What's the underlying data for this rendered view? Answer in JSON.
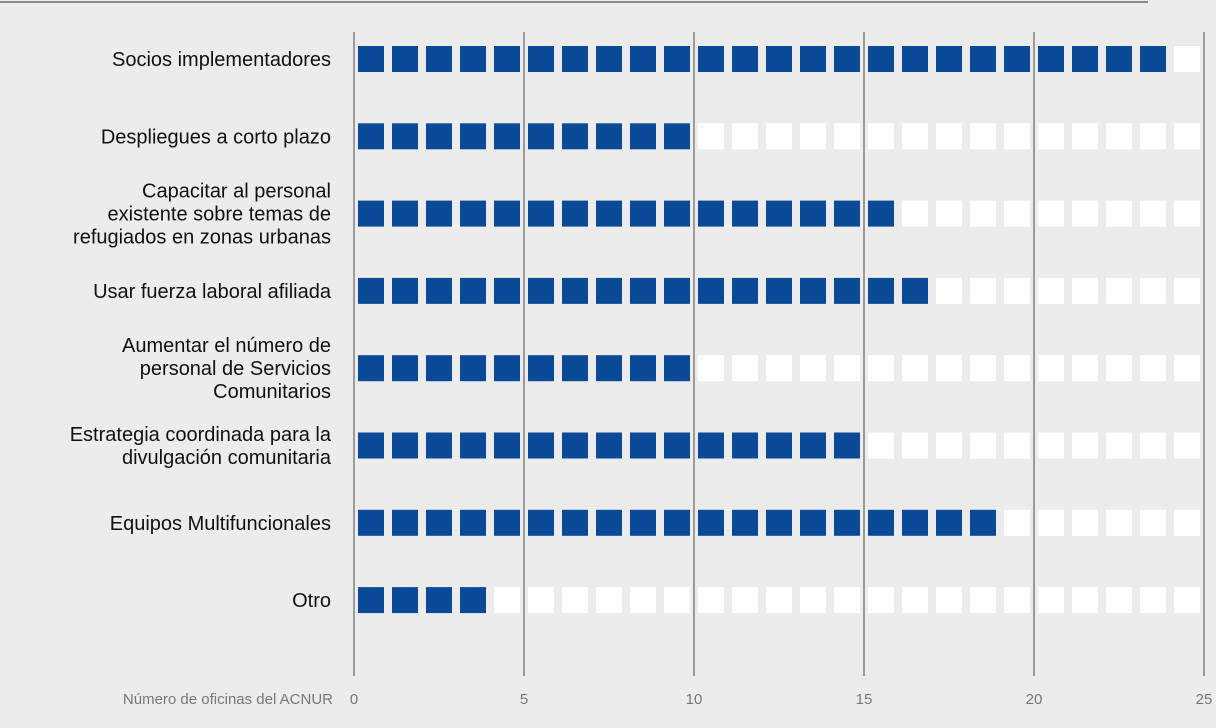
{
  "chart_data": {
    "type": "bar",
    "style": "pictograph-squares",
    "xlabel": "Número de oficinas del ACNUR",
    "xlim": [
      0,
      25
    ],
    "xticks": [
      0,
      5,
      10,
      15,
      20,
      25
    ],
    "categories": [
      "Socios implementadores",
      "Despliegues a corto plazo",
      "Capacitar al personal existente sobre temas de refugiados en zonas urbanas",
      "Usar fuerza laboral afiliada",
      "Aumentar el número de personal de Servicios Comunitarios",
      "Estrategia coordinada para la divulgación comunitaria",
      "Equipos Multifuncionales",
      "Otro"
    ],
    "category_lines": [
      [
        "Socios implementadores"
      ],
      [
        "Despliegues a corto plazo"
      ],
      [
        "Capacitar al personal",
        "existente sobre temas de",
        "refugiados en zonas urbanas"
      ],
      [
        "Usar fuerza laboral afiliada"
      ],
      [
        "Aumentar el número de",
        "personal de Servicios",
        "Comunitarios"
      ],
      [
        "Estrategia coordinada para la",
        "divulgación comunitaria"
      ],
      [
        "Equipos Multifuncionales"
      ],
      [
        "Otro"
      ]
    ],
    "values": [
      24,
      10,
      16,
      17,
      10,
      15,
      19,
      4
    ],
    "grid": true,
    "colors": {
      "filled": "#0a4a97",
      "empty": "#ffffff",
      "background": "#ececec",
      "gridline": "#4a4a4a",
      "text": "#111111",
      "tick_text": "#777777"
    }
  }
}
